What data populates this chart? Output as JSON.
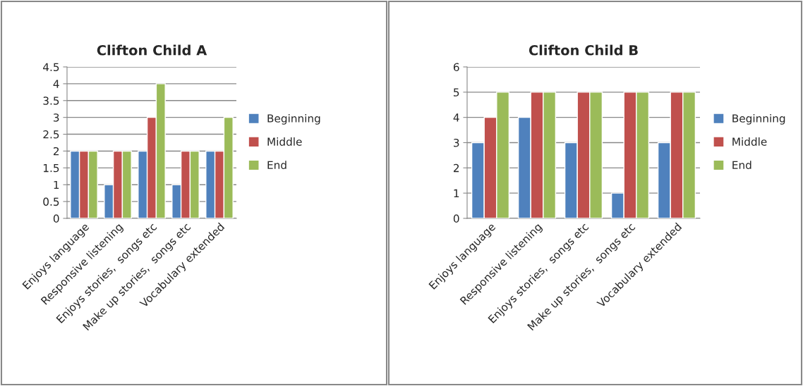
{
  "chart_data": [
    {
      "type": "bar",
      "title": "Clifton Child A",
      "categories": [
        "Enjoys language",
        "Responsive listening",
        "Enjoys stories,  songs etc",
        "Make up stories,  songs etc",
        "Vocabulary extended"
      ],
      "series": [
        {
          "name": "Beginning",
          "color": "#4f81bd",
          "values": [
            2,
            1,
            2,
            1,
            2
          ]
        },
        {
          "name": "Middle",
          "color": "#c0504d",
          "values": [
            2,
            2,
            3,
            2,
            2
          ]
        },
        {
          "name": "End",
          "color": "#9bbb59",
          "values": [
            2,
            2,
            4,
            2,
            3
          ]
        }
      ],
      "ylim": [
        0,
        4.5
      ],
      "yticks": [
        0,
        0.5,
        1,
        1.5,
        2,
        2.5,
        3,
        3.5,
        4,
        4.5
      ],
      "grid": "y",
      "legend": "right"
    },
    {
      "type": "bar",
      "title": "Clifton Child B",
      "categories": [
        "Enjoys language",
        "Responsive listening",
        "Enjoys stories,  songs etc",
        "Make up stories,  songs etc",
        "Vocabulary extended"
      ],
      "series": [
        {
          "name": "Beginning",
          "color": "#4f81bd",
          "values": [
            3,
            4,
            3,
            1,
            3
          ]
        },
        {
          "name": "Middle",
          "color": "#c0504d",
          "values": [
            4,
            5,
            5,
            5,
            5
          ]
        },
        {
          "name": "End",
          "color": "#9bbb59",
          "values": [
            5,
            5,
            5,
            5,
            5
          ]
        }
      ],
      "ylim": [
        0,
        6
      ],
      "yticks": [
        0,
        1,
        2,
        3,
        4,
        5,
        6
      ],
      "grid": "y",
      "legend": "right"
    }
  ]
}
